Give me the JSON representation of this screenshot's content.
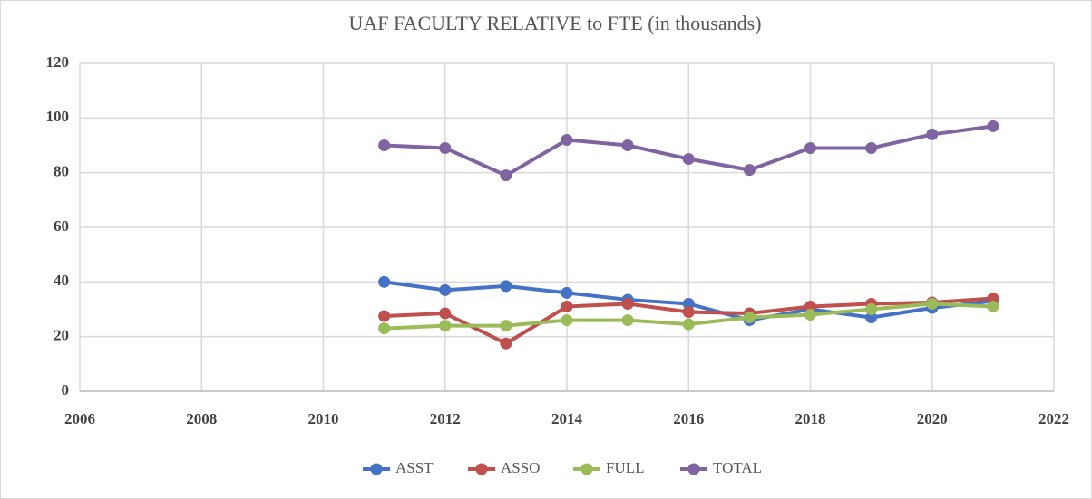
{
  "chart_data": {
    "type": "line",
    "title": "UAF FACULTY RELATIVE to FTE (in thousands)",
    "x": [
      2011,
      2012,
      2013,
      2014,
      2015,
      2016,
      2017,
      2018,
      2019,
      2020,
      2021
    ],
    "series": [
      {
        "name": "ASST",
        "color": "#4472c4",
        "values": [
          40,
          37,
          38.5,
          36,
          33.5,
          32,
          26,
          30,
          27,
          30.5,
          33
        ]
      },
      {
        "name": "ASSO",
        "color": "#c0504d",
        "values": [
          27.5,
          28.5,
          17.5,
          31,
          32,
          29,
          28.5,
          31,
          32,
          32.5,
          34
        ]
      },
      {
        "name": "FULL",
        "color": "#9bbb59",
        "values": [
          23,
          24,
          24,
          26,
          26,
          24.5,
          27,
          28,
          30,
          32,
          31
        ]
      },
      {
        "name": "TOTAL",
        "color": "#8064a2",
        "values": [
          90,
          89,
          79,
          92,
          90,
          85,
          81,
          89,
          89,
          94,
          97
        ]
      }
    ],
    "xlim": [
      2006,
      2022
    ],
    "xticks": [
      2006,
      2008,
      2010,
      2012,
      2014,
      2016,
      2018,
      2020,
      2022
    ],
    "ylim": [
      0,
      120
    ],
    "yticks": [
      0,
      20,
      40,
      60,
      80,
      100,
      120
    ],
    "grid": true,
    "legend": "bottom"
  }
}
